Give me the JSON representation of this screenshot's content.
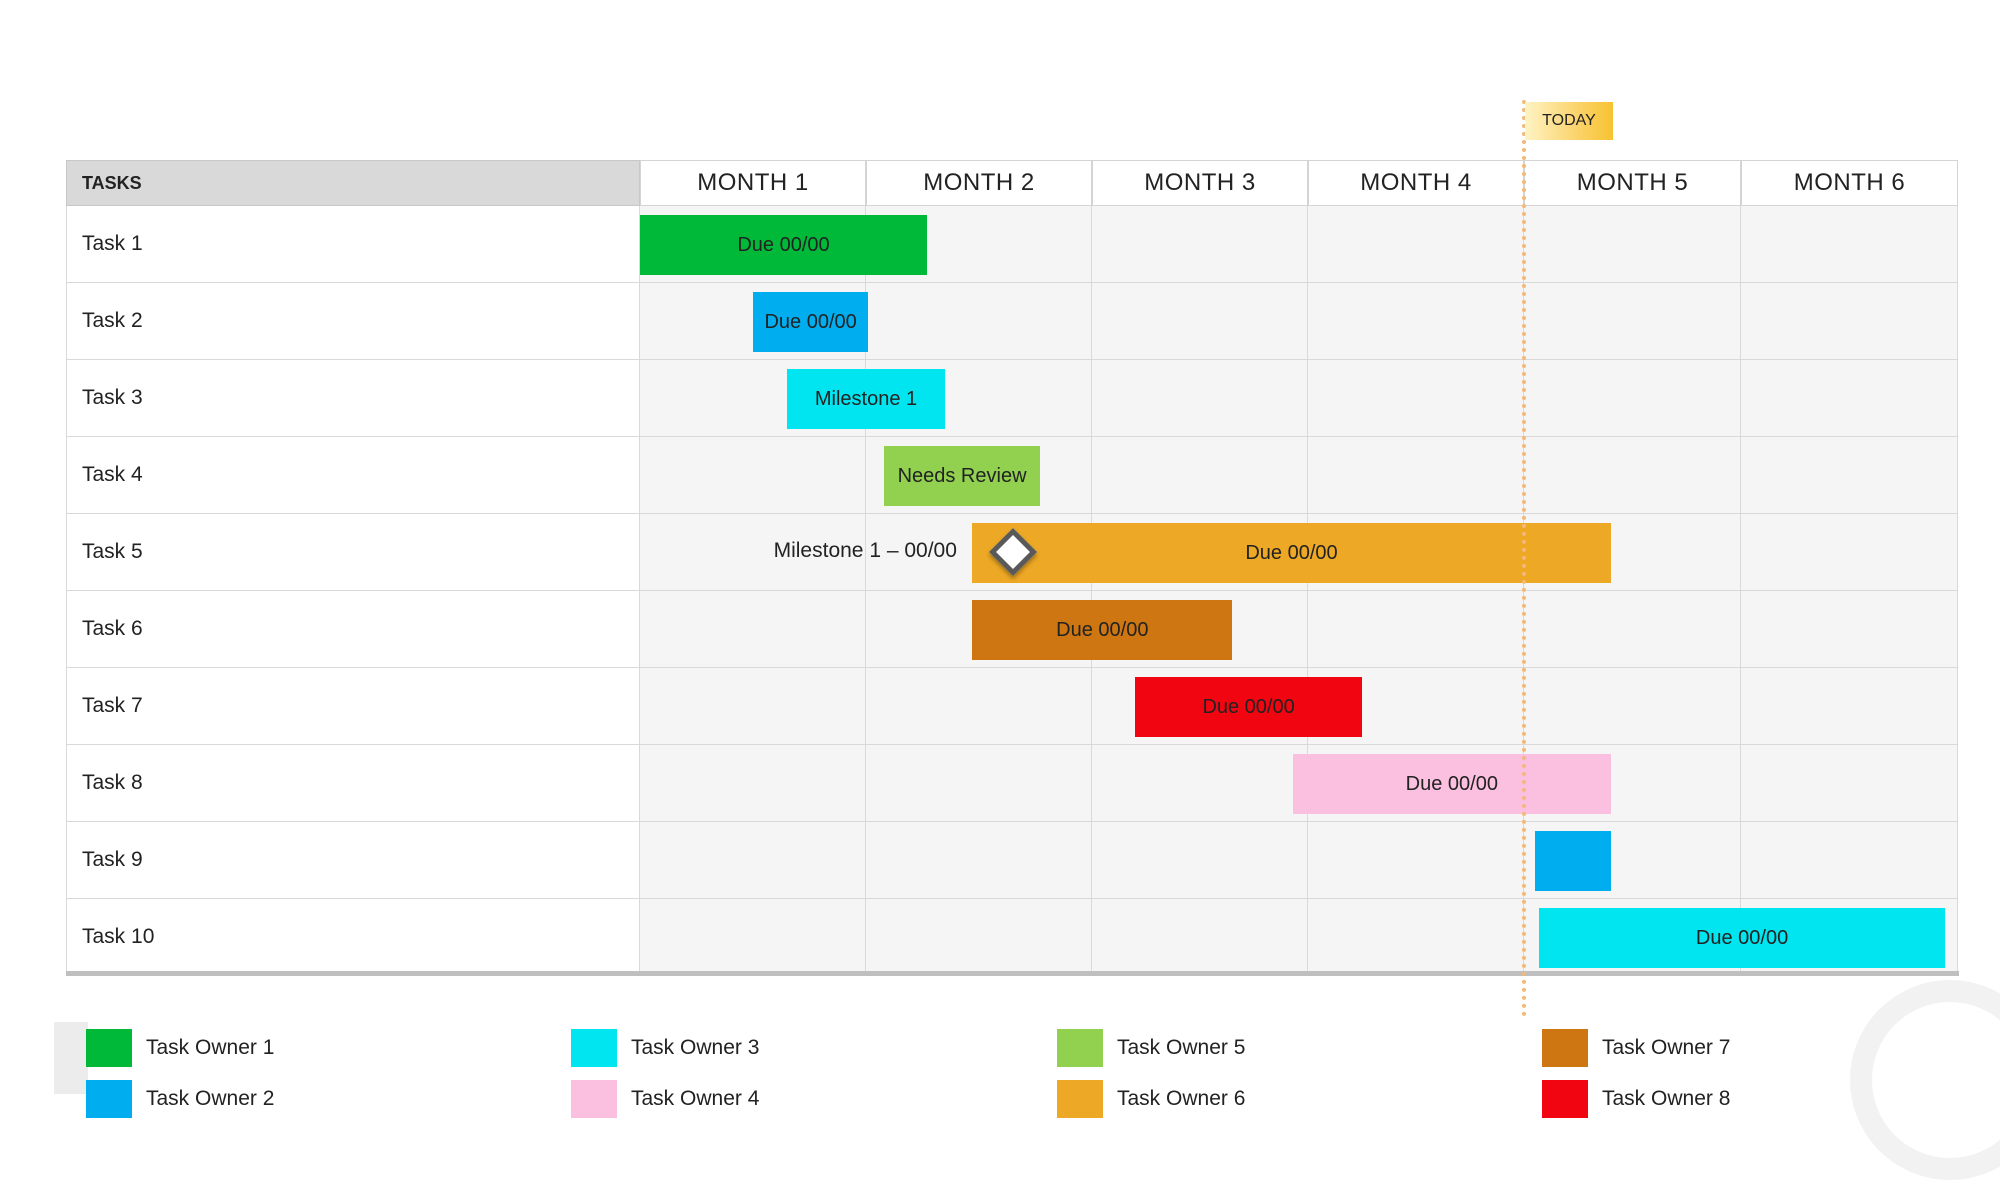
{
  "header": {
    "tasks_label": "TASKS"
  },
  "months": [
    "MONTH 1",
    "MONTH 2",
    "MONTH 3",
    "MONTH 4",
    "MONTH 5",
    "MONTH 6"
  ],
  "today": {
    "label": "TODAY",
    "month_position": 4.0
  },
  "tasks": [
    "Task 1",
    "Task 2",
    "Task 3",
    "Task 4",
    "Task 5",
    "Task 6",
    "Task 7",
    "Task 8",
    "Task 9",
    "Task 10"
  ],
  "chart_data": {
    "type": "gantt",
    "x_unit": "month",
    "x_range": [
      0,
      6
    ],
    "bars": [
      {
        "task": "Task 1",
        "start": 0.0,
        "end": 1.27,
        "label": "Due 00/00",
        "owner": "Task Owner 1"
      },
      {
        "task": "Task 2",
        "start": 0.5,
        "end": 1.01,
        "label": "Due 00/00",
        "owner": "Task Owner 2"
      },
      {
        "task": "Task 3",
        "start": 0.65,
        "end": 1.35,
        "label": "Milestone 1",
        "owner": "Task Owner 3"
      },
      {
        "task": "Task 4",
        "start": 1.08,
        "end": 1.77,
        "label": "Needs Review",
        "owner": "Task Owner 5"
      },
      {
        "task": "Task 5",
        "start": 1.47,
        "end": 4.4,
        "label": "Due 00/00",
        "owner": "Task Owner 6"
      },
      {
        "task": "Task 6",
        "start": 1.47,
        "end": 2.65,
        "label": "Due 00/00",
        "owner": "Task Owner 7"
      },
      {
        "task": "Task 7",
        "start": 2.2,
        "end": 3.25,
        "label": "Due 00/00",
        "owner": "Task Owner 8"
      },
      {
        "task": "Task 8",
        "start": 2.93,
        "end": 4.4,
        "label": "Due 00/00",
        "owner": "Task Owner 4"
      },
      {
        "task": "Task 9",
        "start": 4.05,
        "end": 4.4,
        "label": "",
        "owner": "Task Owner 2"
      },
      {
        "task": "Task 10",
        "start": 4.07,
        "end": 5.94,
        "label": "Due 00/00",
        "owner": "Task Owner 3"
      }
    ],
    "milestones": [
      {
        "task": "Task 5",
        "at": 1.65,
        "label": "Milestone 1 – 00/00"
      }
    ]
  },
  "legend": [
    {
      "label": "Task Owner 1",
      "color": "#00b938"
    },
    {
      "label": "Task Owner 2",
      "color": "#00aeef"
    },
    {
      "label": "Task Owner 3",
      "color": "#00e5f0"
    },
    {
      "label": "Task Owner 4",
      "color": "#fbbfdf"
    },
    {
      "label": "Task Owner 5",
      "color": "#92d050"
    },
    {
      "label": "Task Owner 6",
      "color": "#eda825"
    },
    {
      "label": "Task Owner 7",
      "color": "#cd7612"
    },
    {
      "label": "Task Owner 8",
      "color": "#f00511"
    }
  ]
}
